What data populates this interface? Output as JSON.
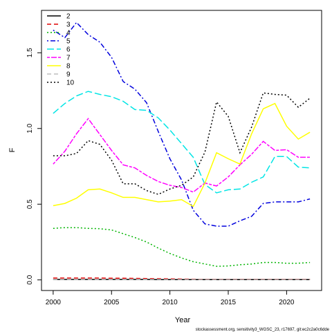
{
  "chart_data": {
    "type": "line",
    "title": "",
    "xlabel": "Year",
    "ylabel": "F",
    "xlim": [
      1999.0,
      2023.0
    ],
    "ylim": [
      -0.07,
      1.78
    ],
    "xticks": [
      2000,
      2005,
      2010,
      2015,
      2020
    ],
    "xtick_labels": [
      "2000",
      "2005",
      "2010",
      "2015",
      "2020"
    ],
    "yticks": [
      0.0,
      0.5,
      1.0,
      1.5
    ],
    "ytick_labels": [
      "0.0",
      "0.5",
      "1.0",
      "1.5"
    ],
    "grid": false,
    "legend_position": "top-left",
    "x": [
      2000,
      2001,
      2002,
      2003,
      2004,
      2005,
      2006,
      2007,
      2008,
      2009,
      2010,
      2011,
      2012,
      2013,
      2014,
      2015,
      2016,
      2017,
      2018,
      2019,
      2020,
      2021,
      2022
    ],
    "series": [
      {
        "name": "2",
        "color": "#000000",
        "dash": "solid",
        "values": [
          0.003,
          0.003,
          0.003,
          0.003,
          0.003,
          0.003,
          0.003,
          0.003,
          0.003,
          0.002,
          0.002,
          0.002,
          0.002,
          0.002,
          0.002,
          0.002,
          0.002,
          0.002,
          0.002,
          0.002,
          0.002,
          0.002,
          0.002
        ]
      },
      {
        "name": "3",
        "color": "#df0000",
        "dash": "dashed",
        "values": [
          0.012,
          0.012,
          0.012,
          0.012,
          0.012,
          0.011,
          0.011,
          0.01,
          0.009,
          0.008,
          0.007,
          0.006,
          0.005,
          0.004,
          0.004,
          0.004,
          0.004,
          0.004,
          0.004,
          0.004,
          0.004,
          0.004,
          0.004
        ]
      },
      {
        "name": "4",
        "color": "#00b400",
        "dash": "dotted",
        "values": [
          0.34,
          0.345,
          0.345,
          0.34,
          0.338,
          0.33,
          0.305,
          0.28,
          0.25,
          0.21,
          0.175,
          0.145,
          0.12,
          0.105,
          0.09,
          0.092,
          0.1,
          0.105,
          0.115,
          0.115,
          0.11,
          0.11,
          0.115
        ]
      },
      {
        "name": "5",
        "color": "#0000dd",
        "dash": "dotdash",
        "values": [
          1.65,
          1.6,
          1.7,
          1.62,
          1.57,
          1.47,
          1.31,
          1.26,
          1.17,
          0.98,
          0.8,
          0.66,
          0.46,
          0.37,
          0.355,
          0.355,
          0.39,
          0.42,
          0.505,
          0.515,
          0.515,
          0.515,
          0.535
        ]
      },
      {
        "name": "6",
        "color": "#00e5e5",
        "dash": "longdash",
        "values": [
          1.1,
          1.165,
          1.215,
          1.245,
          1.225,
          1.21,
          1.18,
          1.125,
          1.12,
          1.07,
          0.99,
          0.9,
          0.81,
          0.63,
          0.575,
          0.595,
          0.6,
          0.645,
          0.68,
          0.815,
          0.815,
          0.745,
          0.74
        ]
      },
      {
        "name": "7",
        "color": "#ff00ff",
        "dash": "twodash",
        "values": [
          0.765,
          0.85,
          0.965,
          1.065,
          0.96,
          0.855,
          0.76,
          0.74,
          0.69,
          0.65,
          0.625,
          0.61,
          0.58,
          0.64,
          0.62,
          0.68,
          0.76,
          0.83,
          0.915,
          0.855,
          0.86,
          0.81,
          0.81
        ]
      },
      {
        "name": "8",
        "color": "#ffff00",
        "dash": "solid",
        "values": [
          0.49,
          0.505,
          0.54,
          0.595,
          0.6,
          0.575,
          0.545,
          0.545,
          0.53,
          0.515,
          0.52,
          0.53,
          0.485,
          0.64,
          0.84,
          0.8,
          0.765,
          0.965,
          1.13,
          1.165,
          1.015,
          0.93,
          0.975
        ]
      },
      {
        "name": "9",
        "color": "#bebebe",
        "dash": "dashed",
        "values": [
          0.004,
          0.004,
          0.004,
          0.004,
          0.004,
          0.004,
          0.004,
          0.004,
          0.004,
          0.004,
          0.003,
          0.003,
          0.003,
          0.003,
          0.003,
          0.003,
          0.003,
          0.003,
          0.003,
          0.003,
          0.003,
          0.003,
          0.003
        ]
      },
      {
        "name": "10",
        "color": "#000000",
        "dash": "dotted",
        "values": [
          0.82,
          0.82,
          0.835,
          0.92,
          0.895,
          0.79,
          0.635,
          0.635,
          0.59,
          0.565,
          0.6,
          0.625,
          0.68,
          0.845,
          1.175,
          1.08,
          0.84,
          1.01,
          1.235,
          1.225,
          1.22,
          1.14,
          1.2
        ]
      }
    ]
  },
  "footer_text": "stockassessment.org, sensitivity3_WGSC_23, r17697, git:ec2c2a0c6dde"
}
